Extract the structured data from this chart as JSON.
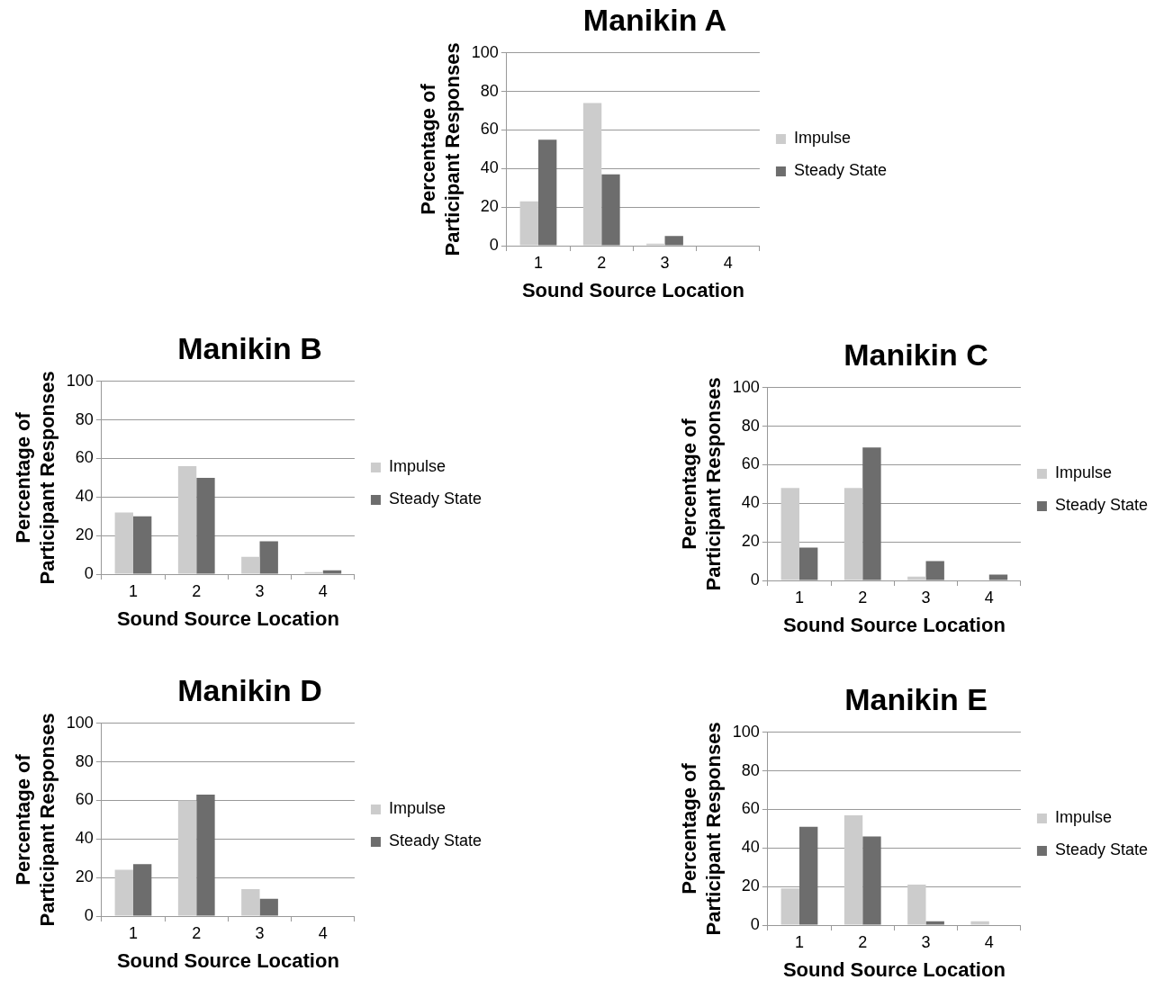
{
  "chart_data": [
    {
      "type": "bar",
      "title": "Manikin A",
      "xlabel": "Sound Source Location",
      "ylabel": "Percentage of Participant Responses",
      "categories": [
        "1",
        "2",
        "3",
        "4"
      ],
      "series": [
        {
          "name": "Impulse",
          "color": "#cccccc",
          "values": [
            23,
            74,
            1,
            0
          ]
        },
        {
          "name": "Steady State",
          "color": "#6d6d6d",
          "values": [
            55,
            37,
            5,
            0
          ]
        }
      ],
      "ylim": [
        0,
        100
      ],
      "yticks": [
        0,
        20,
        40,
        60,
        80,
        100
      ],
      "grid": "y",
      "legend": "right"
    },
    {
      "type": "bar",
      "title": "Manikin B",
      "xlabel": "Sound Source Location",
      "ylabel": "Percentage of Participant Responses",
      "categories": [
        "1",
        "2",
        "3",
        "4"
      ],
      "series": [
        {
          "name": "Impulse",
          "color": "#cccccc",
          "values": [
            32,
            56,
            9,
            1
          ]
        },
        {
          "name": "Steady State",
          "color": "#6d6d6d",
          "values": [
            30,
            50,
            17,
            2
          ]
        }
      ],
      "ylim": [
        0,
        100
      ],
      "yticks": [
        0,
        20,
        40,
        60,
        80,
        100
      ],
      "grid": "y",
      "legend": "right"
    },
    {
      "type": "bar",
      "title": "Manikin C",
      "xlabel": "Sound Source Location",
      "ylabel": "Percentage of Participant Responses",
      "categories": [
        "1",
        "2",
        "3",
        "4"
      ],
      "series": [
        {
          "name": "Impulse",
          "color": "#cccccc",
          "values": [
            48,
            48,
            2,
            0
          ]
        },
        {
          "name": "Steady State",
          "color": "#6d6d6d",
          "values": [
            17,
            69,
            10,
            3
          ]
        }
      ],
      "ylim": [
        0,
        100
      ],
      "yticks": [
        0,
        20,
        40,
        60,
        80,
        100
      ],
      "grid": "y",
      "legend": "right"
    },
    {
      "type": "bar",
      "title": "Manikin D",
      "xlabel": "Sound Source Location",
      "ylabel": "Percentage of Participant Responses",
      "categories": [
        "1",
        "2",
        "3",
        "4"
      ],
      "series": [
        {
          "name": "Impulse",
          "color": "#cccccc",
          "values": [
            24,
            60,
            14,
            0
          ]
        },
        {
          "name": "Steady State",
          "color": "#6d6d6d",
          "values": [
            27,
            63,
            9,
            0
          ]
        }
      ],
      "ylim": [
        0,
        100
      ],
      "yticks": [
        0,
        20,
        40,
        60,
        80,
        100
      ],
      "grid": "y",
      "legend": "right"
    },
    {
      "type": "bar",
      "title": "Manikin E",
      "xlabel": "Sound Source Location",
      "ylabel": "Percentage of Participant Responses",
      "categories": [
        "1",
        "2",
        "3",
        "4"
      ],
      "series": [
        {
          "name": "Impulse",
          "color": "#cccccc",
          "values": [
            19,
            57,
            21,
            2
          ]
        },
        {
          "name": "Steady State",
          "color": "#6d6d6d",
          "values": [
            51,
            46,
            2,
            0
          ]
        }
      ],
      "ylim": [
        0,
        100
      ],
      "yticks": [
        0,
        20,
        40,
        60,
        80,
        100
      ],
      "grid": "y",
      "legend": "right"
    }
  ]
}
